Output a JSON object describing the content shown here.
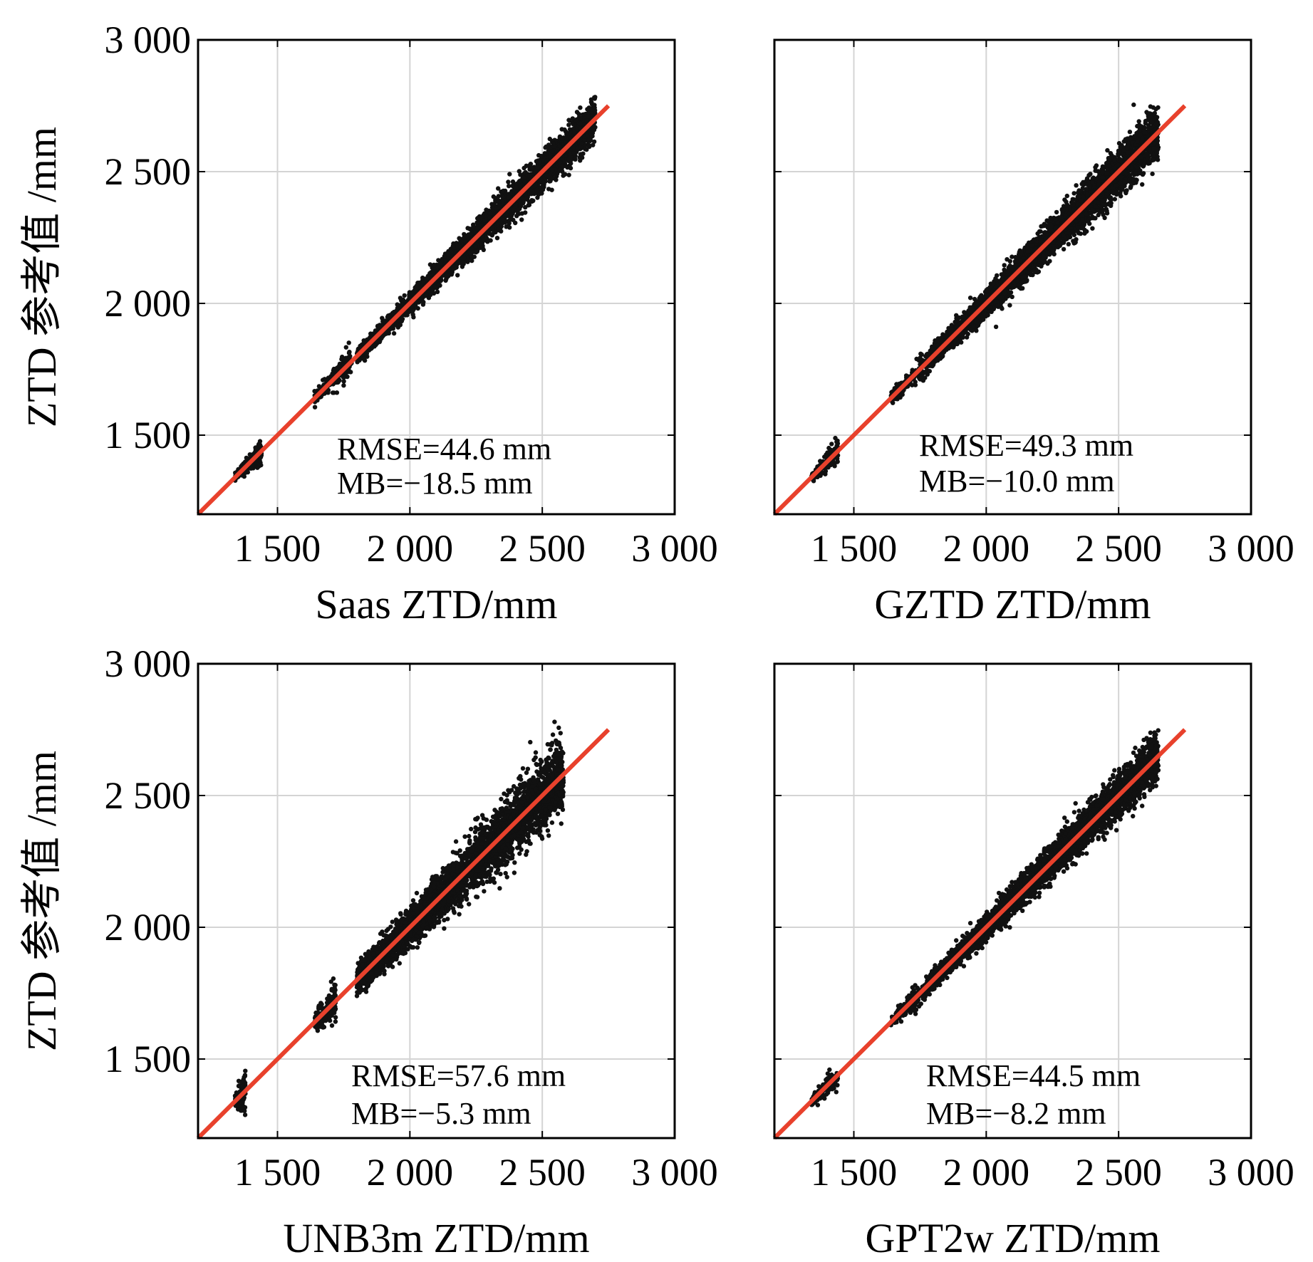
{
  "figure": {
    "ylabel": "ZTD 参考值 /mm"
  },
  "chart_data": [
    {
      "type": "scatter",
      "title": "",
      "xlabel": "Saas ZTD/mm",
      "ylabel": "ZTD 参考值 /mm",
      "xlim": [
        1200,
        3000
      ],
      "ylim": [
        1200,
        3000
      ],
      "xticks": [
        1500,
        2000,
        2500,
        3000
      ],
      "yticks": [
        1500,
        2000,
        2500,
        3000
      ],
      "xtick_labels": [
        "1 500",
        "2 000",
        "2 500",
        "3 000"
      ],
      "ytick_labels": [
        "1 500",
        "2 000",
        "2 500",
        "3 000"
      ],
      "grid": true,
      "reference_line": {
        "from": [
          1200,
          1200
        ],
        "to": [
          2750,
          2750
        ],
        "color": "#e8412c"
      },
      "point_color": "#111111",
      "clusters": [
        {
          "x": [
            1340,
            1440
          ],
          "spread": 35,
          "density": 1
        },
        {
          "x": [
            1640,
            1780
          ],
          "spread": 45,
          "density": 1
        },
        {
          "x": [
            1800,
            2700
          ],
          "spread": 60,
          "density": 5
        }
      ],
      "stats": {
        "rmse": "RMSE=44.6 mm",
        "mb": "MB=−18.5 mm"
      }
    },
    {
      "type": "scatter",
      "title": "",
      "xlabel": "GZTD ZTD/mm",
      "ylabel": "",
      "xlim": [
        1200,
        3000
      ],
      "ylim": [
        1200,
        3000
      ],
      "xticks": [
        1500,
        2000,
        2500,
        3000
      ],
      "yticks": [
        1500,
        2000,
        2500,
        3000
      ],
      "xtick_labels": [
        "1 500",
        "2 000",
        "2 500",
        "3 000"
      ],
      "ytick_labels": [],
      "grid": true,
      "reference_line": {
        "from": [
          1200,
          1200
        ],
        "to": [
          2750,
          2750
        ],
        "color": "#e8412c"
      },
      "point_color": "#111111",
      "clusters": [
        {
          "x": [
            1340,
            1440
          ],
          "spread": 35,
          "density": 1
        },
        {
          "x": [
            1640,
            1780
          ],
          "spread": 40,
          "density": 1
        },
        {
          "x": [
            1780,
            2650
          ],
          "spread": 75,
          "density": 5
        }
      ],
      "stats": {
        "rmse": "RMSE=49.3 mm",
        "mb": "MB=−10.0 mm"
      }
    },
    {
      "type": "scatter",
      "title": "",
      "xlabel": "UNB3m ZTD/mm",
      "ylabel": "ZTD 参考值 /mm",
      "xlim": [
        1200,
        3000
      ],
      "ylim": [
        1200,
        3000
      ],
      "xticks": [
        1500,
        2000,
        2500,
        3000
      ],
      "yticks": [
        1500,
        2000,
        2500,
        3000
      ],
      "xtick_labels": [
        "1 500",
        "2 000",
        "2 500",
        "3 000"
      ],
      "ytick_labels": [
        "1 500",
        "2 000",
        "2 500",
        "3 000"
      ],
      "grid": true,
      "reference_line": {
        "from": [
          1200,
          1200
        ],
        "to": [
          2750,
          2750
        ],
        "color": "#e8412c"
      },
      "point_color": "#111111",
      "clusters": [
        {
          "x": [
            1340,
            1380
          ],
          "spread": 60,
          "density": 1
        },
        {
          "x": [
            1640,
            1720
          ],
          "spread": 70,
          "density": 1
        },
        {
          "x": [
            1800,
            2580
          ],
          "spread": 110,
          "density": 5
        }
      ],
      "stats": {
        "rmse": "RMSE=57.6 mm",
        "mb": "MB=−5.3 mm"
      }
    },
    {
      "type": "scatter",
      "title": "",
      "xlabel": "GPT2w ZTD/mm",
      "ylabel": "",
      "xlim": [
        1200,
        3000
      ],
      "ylim": [
        1200,
        3000
      ],
      "xticks": [
        1500,
        2000,
        2500,
        3000
      ],
      "yticks": [
        1500,
        2000,
        2500,
        3000
      ],
      "xtick_labels": [
        "1 500",
        "2 000",
        "2 500",
        "3 000"
      ],
      "ytick_labels": [],
      "grid": true,
      "reference_line": {
        "from": [
          1200,
          1200
        ],
        "to": [
          2750,
          2750
        ],
        "color": "#e8412c"
      },
      "point_color": "#111111",
      "clusters": [
        {
          "x": [
            1340,
            1440
          ],
          "spread": 35,
          "density": 1
        },
        {
          "x": [
            1640,
            1780
          ],
          "spread": 40,
          "density": 1
        },
        {
          "x": [
            1780,
            2650
          ],
          "spread": 70,
          "density": 5
        }
      ],
      "stats": {
        "rmse": "RMSE=44.5 mm",
        "mb": "MB=−8.2 mm"
      }
    }
  ]
}
